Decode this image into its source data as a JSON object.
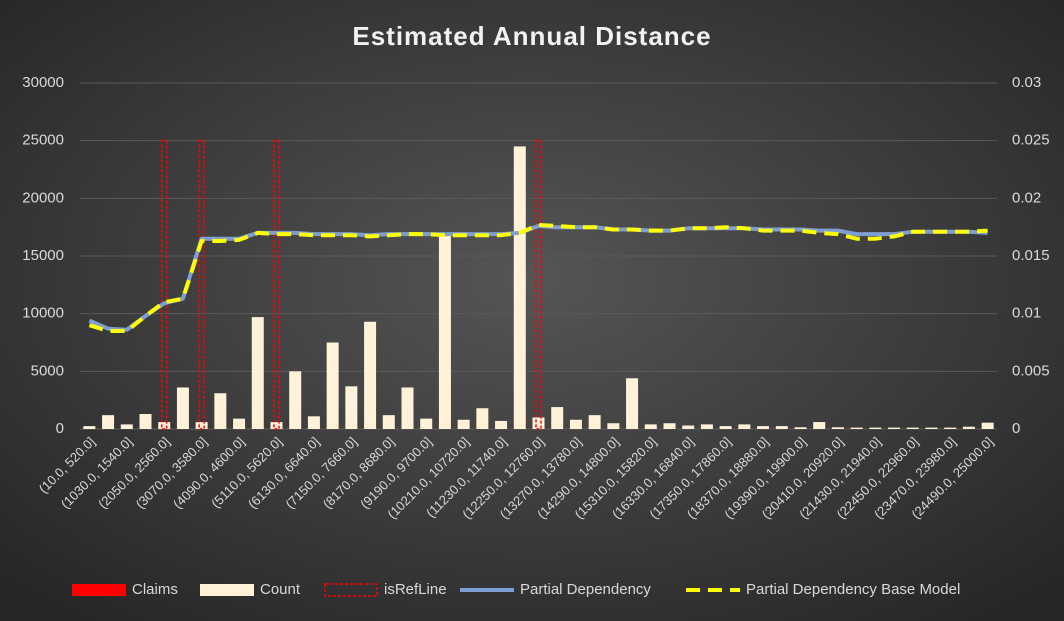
{
  "chart_data": {
    "type": "bar_line",
    "title": "Estimated Annual Distance",
    "categories": [
      "(10.0, 520.0]",
      null,
      "(1030.0, 1540.0]",
      null,
      "(2050.0, 2560.0]",
      null,
      "(3070.0, 3580.0]",
      null,
      "(4090.0, 4600.0]",
      null,
      "(5110.0, 5620.0]",
      null,
      "(6130.0, 6640.0]",
      null,
      "(7150.0, 7660.0]",
      null,
      "(8170.0, 8680.0]",
      null,
      "(9190.0, 9700.0]",
      null,
      "(10210.0, 10720.0]",
      null,
      "(11230.0, 11740.0]",
      null,
      "(12250.0, 12760.0]",
      null,
      "(13270.0, 13780.0]",
      null,
      "(14290.0, 14800.0]",
      null,
      "(15310.0, 15820.0]",
      null,
      "(16330.0, 16840.0]",
      null,
      "(17350.0, 17860.0]",
      null,
      "(18370.0, 18880.0]",
      null,
      "(19390.0, 19900.0]",
      null,
      "(20410.0, 20920.0]",
      null,
      "(21430.0, 21940.0]",
      null,
      "(22450.0, 22960.0]",
      null,
      "(23470.0, 23980.0]",
      null,
      "(24490.0, 25000.0]"
    ],
    "series": [
      {
        "name": "Claims",
        "kind": "bar",
        "color": "#ff0000",
        "values": [
          10,
          40,
          10,
          40,
          60,
          100,
          30,
          80,
          30,
          400,
          40,
          150,
          40,
          300,
          100,
          400,
          50,
          100,
          40,
          700,
          30,
          60,
          30,
          1200,
          50,
          60,
          30,
          40,
          20,
          150,
          20,
          20,
          10,
          20,
          10,
          20,
          10,
          10,
          10,
          20,
          10,
          10,
          10,
          10,
          10,
          10,
          10,
          10,
          20
        ]
      },
      {
        "name": "Count",
        "kind": "bar",
        "color": "#fff2d9",
        "values": [
          250,
          1200,
          400,
          1300,
          600,
          3600,
          600,
          3100,
          900,
          9700,
          600,
          5000,
          1100,
          7500,
          3700,
          9300,
          1200,
          3600,
          900,
          16800,
          800,
          1800,
          700,
          24500,
          1000,
          1900,
          800,
          1200,
          500,
          4400,
          400,
          500,
          300,
          400,
          250,
          400,
          250,
          250,
          150,
          600,
          150,
          120,
          120,
          120,
          120,
          120,
          120,
          200,
          550
        ]
      },
      {
        "name": "isRefLine",
        "kind": "refbar",
        "color": "#ff0000",
        "values": [
          null,
          null,
          null,
          null,
          25000,
          null,
          25000,
          null,
          null,
          null,
          25000,
          null,
          null,
          null,
          null,
          null,
          null,
          null,
          null,
          null,
          null,
          null,
          null,
          null,
          25000,
          null,
          null,
          null,
          null,
          null,
          null,
          null,
          null,
          null,
          null,
          null,
          null,
          null,
          null,
          null,
          null,
          null,
          null,
          null,
          null,
          null,
          null,
          null,
          null
        ]
      },
      {
        "name": "Partial Dependency",
        "kind": "line",
        "axis": "y2",
        "color": "#7f9fd4",
        "values": [
          0.0094,
          0.0087,
          0.0086,
          0.0098,
          0.0109,
          0.0113,
          0.0165,
          0.0165,
          0.0165,
          0.017,
          0.017,
          0.017,
          0.0169,
          0.0169,
          0.0169,
          0.0168,
          0.0169,
          0.0169,
          0.0169,
          0.0169,
          0.0169,
          0.0169,
          0.0169,
          0.017,
          0.0176,
          0.0175,
          0.0175,
          0.0175,
          0.0173,
          0.0173,
          0.0172,
          0.0172,
          0.0174,
          0.0174,
          0.0174,
          0.0174,
          0.0173,
          0.0173,
          0.0173,
          0.0172,
          0.0172,
          0.0169,
          0.0169,
          0.0169,
          0.0171,
          0.0171,
          0.0171,
          0.0171,
          0.017
        ]
      },
      {
        "name": "Partial Dependency Base Model",
        "kind": "dashline",
        "axis": "y2",
        "color": "#ffff00",
        "values": [
          0.009,
          0.0085,
          0.0085,
          0.0098,
          0.011,
          0.0113,
          0.0163,
          0.0163,
          0.0164,
          0.017,
          0.0169,
          0.0169,
          0.0168,
          0.0168,
          0.0168,
          0.0167,
          0.0168,
          0.0169,
          0.0169,
          0.0168,
          0.0168,
          0.0168,
          0.0168,
          0.017,
          0.0177,
          0.0176,
          0.0175,
          0.0175,
          0.0173,
          0.0173,
          0.0172,
          0.0172,
          0.0174,
          0.0174,
          0.0175,
          0.0174,
          0.0172,
          0.0172,
          0.0172,
          0.017,
          0.0169,
          0.0165,
          0.0165,
          0.0167,
          0.0171,
          0.0171,
          0.0171,
          0.0171,
          0.0172
        ]
      }
    ],
    "ylim": [
      0,
      30000
    ],
    "yticks": [
      0,
      5000,
      10000,
      15000,
      20000,
      25000,
      30000
    ],
    "y2lim": [
      0,
      0.03
    ],
    "y2ticks": [
      0,
      0.005,
      0.01,
      0.015,
      0.02,
      0.025,
      0.03
    ],
    "grid": true,
    "legend": "bottom"
  }
}
